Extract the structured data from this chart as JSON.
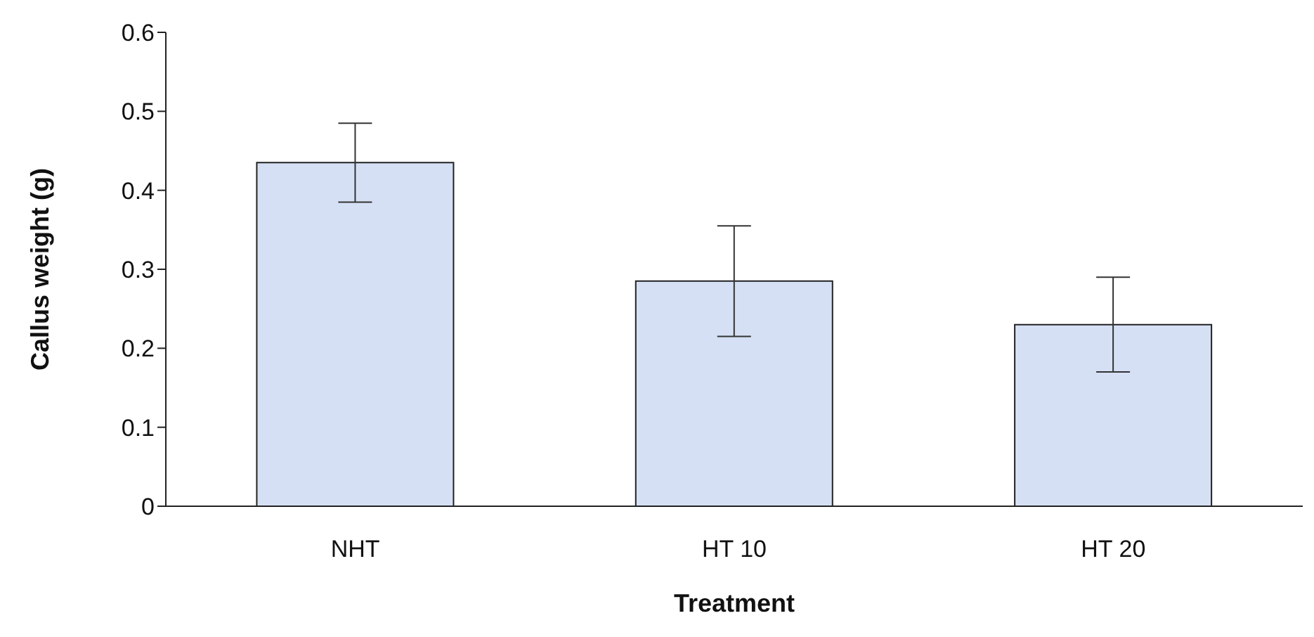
{
  "chart_data": {
    "type": "bar",
    "xlabel": "Treatment",
    "ylabel": "Callus weight (g)",
    "categories": [
      "NHT",
      "HT 10",
      "HT 20"
    ],
    "values": [
      0.435,
      0.285,
      0.23
    ],
    "errors": [
      0.05,
      0.07,
      0.06
    ],
    "color": "#d6e0f5",
    "ylim": [
      0,
      0.6
    ],
    "yticks": [
      0,
      0.1,
      0.2,
      0.3,
      0.4,
      0.5,
      0.6
    ],
    "grid": false
  }
}
